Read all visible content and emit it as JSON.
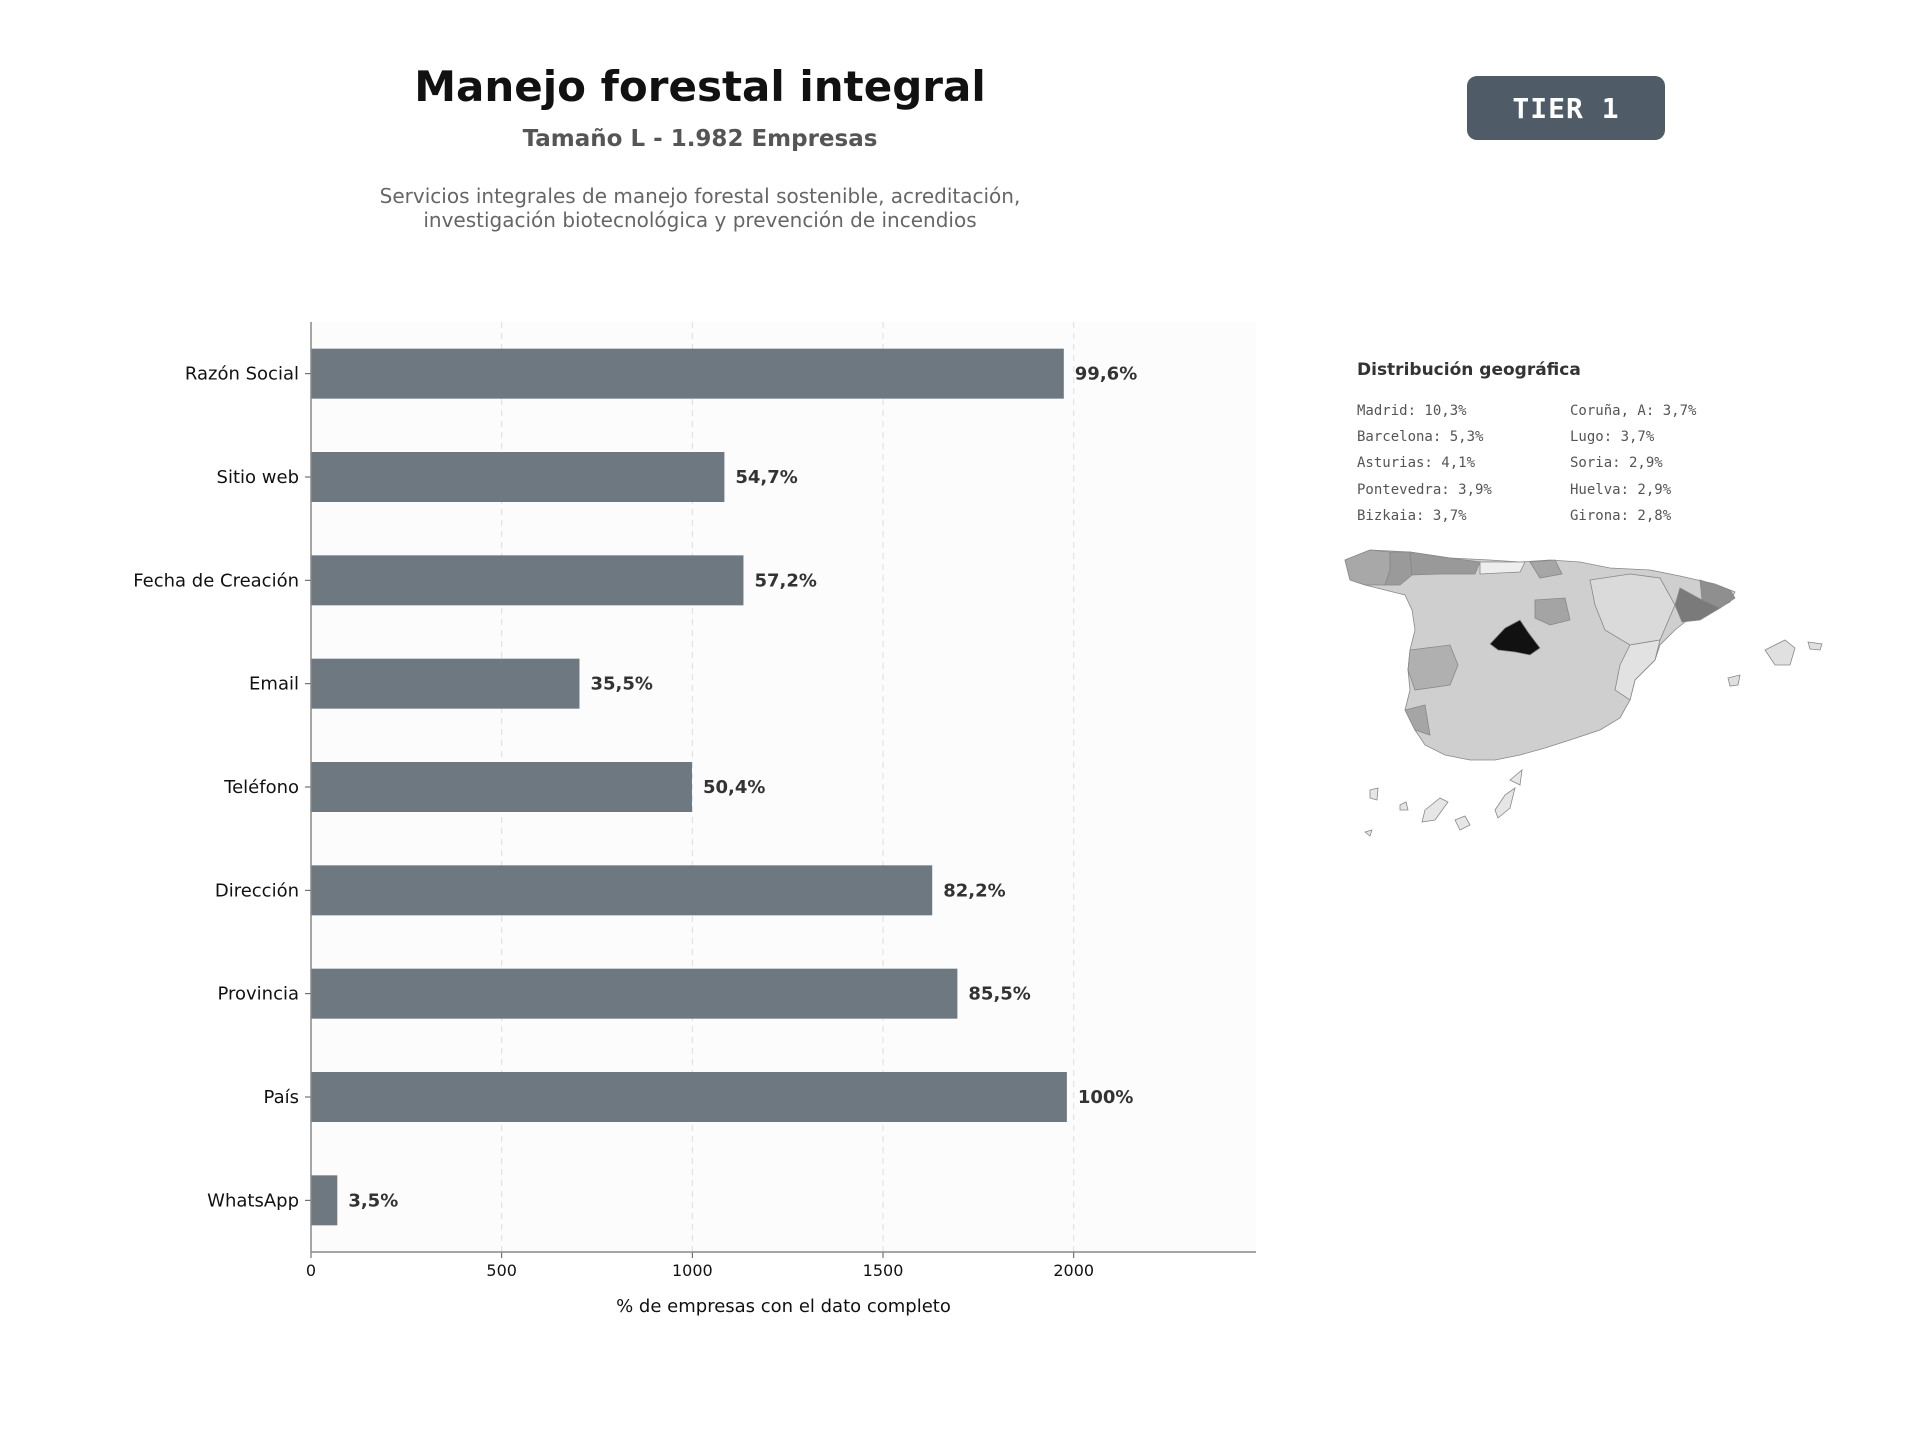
{
  "header": {
    "title": "Manejo forestal integral",
    "subtitle": "Tamaño L - 1.982 Empresas",
    "description_line1": "Servicios integrales de manejo forestal sostenible, acreditación,",
    "description_line2": "investigación biotecnológica y prevención de incendios",
    "tier_label": "TIER 1"
  },
  "geo": {
    "title": "Distribución geográfica",
    "left": [
      "Madrid: 10,3%",
      "Barcelona: 5,3%",
      "Asturias: 4,1%",
      "Pontevedra: 3,9%",
      "Bizkaia: 3,7%"
    ],
    "right": [
      "Coruña, A: 3,7%",
      "Lugo: 3,7%",
      "Soria: 2,9%",
      "Huelva: 2,9%",
      "Girona: 2,8%"
    ]
  },
  "chart_data": {
    "type": "bar",
    "orientation": "horizontal",
    "categories": [
      "Razón Social",
      "Sitio web",
      "Fecha de Creación",
      "Email",
      "Teléfono",
      "Dirección",
      "Provincia",
      "País",
      "WhatsApp"
    ],
    "values": [
      1974,
      1084,
      1134,
      704,
      999,
      1629,
      1695,
      1982,
      69
    ],
    "labels": [
      "99,6%",
      "54,7%",
      "57,2%",
      "35,5%",
      "50,4%",
      "82,2%",
      "85,5%",
      "100%",
      "3,5%"
    ],
    "xlabel": "% de empresas con el dato completo",
    "xlim": [
      0,
      2478
    ],
    "xticks": [
      0,
      500,
      1000,
      1500,
      2000
    ],
    "grid": "x-dashed",
    "bar_color": "#6e7880"
  }
}
